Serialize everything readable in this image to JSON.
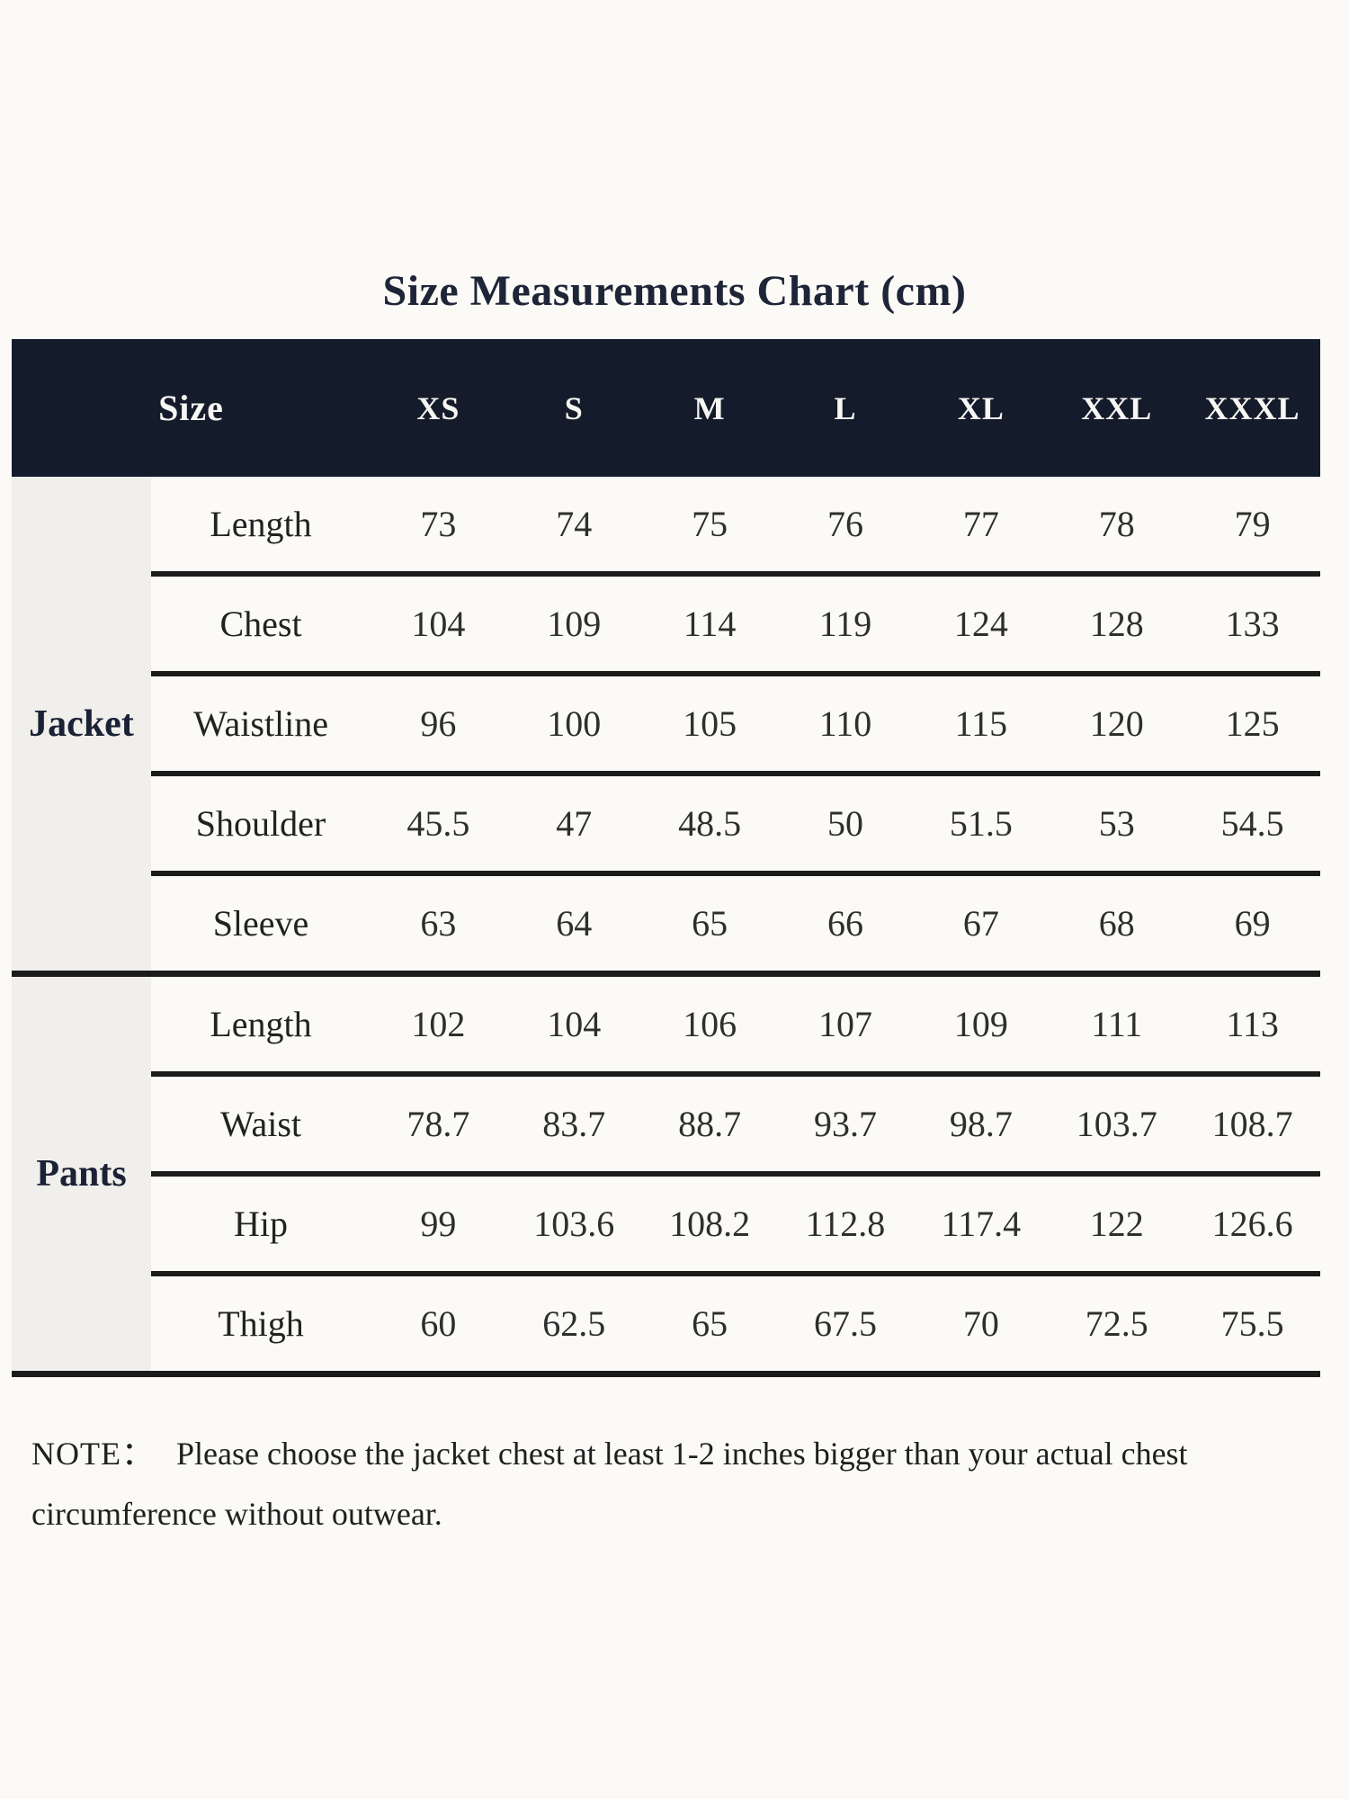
{
  "page": {
    "title": "Size Measurements Chart (cm)",
    "background_color": "#fbfaf7"
  },
  "table": {
    "colors": {
      "header_background": "#141b2b",
      "header_text": "#f6f6f3",
      "group_column_background": "#f0efec",
      "grid_line": "#1c1c1c",
      "body_text": "#2e2e2e"
    },
    "header": {
      "size_label": "Size",
      "columns": [
        "XS",
        "S",
        "M",
        "L",
        "XL",
        "XXL",
        "XXXL"
      ]
    },
    "groups": [
      {
        "label": "Jacket",
        "rows": [
          {
            "label": "Length",
            "values": [
              "73",
              "74",
              "75",
              "76",
              "77",
              "78",
              "79"
            ]
          },
          {
            "label": "Chest",
            "values": [
              "104",
              "109",
              "114",
              "119",
              "124",
              "128",
              "133"
            ]
          },
          {
            "label": "Waistline",
            "values": [
              "96",
              "100",
              "105",
              "110",
              "115",
              "120",
              "125"
            ]
          },
          {
            "label": "Shoulder",
            "values": [
              "45.5",
              "47",
              "48.5",
              "50",
              "51.5",
              "53",
              "54.5"
            ]
          },
          {
            "label": "Sleeve",
            "values": [
              "63",
              "64",
              "65",
              "66",
              "67",
              "68",
              "69"
            ]
          }
        ]
      },
      {
        "label": "Pants",
        "rows": [
          {
            "label": "Length",
            "values": [
              "102",
              "104",
              "106",
              "107",
              "109",
              "111",
              "113"
            ]
          },
          {
            "label": "Waist",
            "values": [
              "78.7",
              "83.7",
              "88.7",
              "93.7",
              "98.7",
              "103.7",
              "108.7"
            ]
          },
          {
            "label": "Hip",
            "values": [
              "99",
              "103.6",
              "108.2",
              "112.8",
              "117.4",
              "122",
              "126.6"
            ]
          },
          {
            "label": "Thigh",
            "values": [
              "60",
              "62.5",
              "65",
              "67.5",
              "70",
              "72.5",
              "75.5"
            ]
          }
        ]
      }
    ]
  },
  "note": {
    "label": "NOTE：",
    "text": "Please choose the jacket chest at least 1-2 inches bigger than your actual chest circumference without outwear."
  }
}
